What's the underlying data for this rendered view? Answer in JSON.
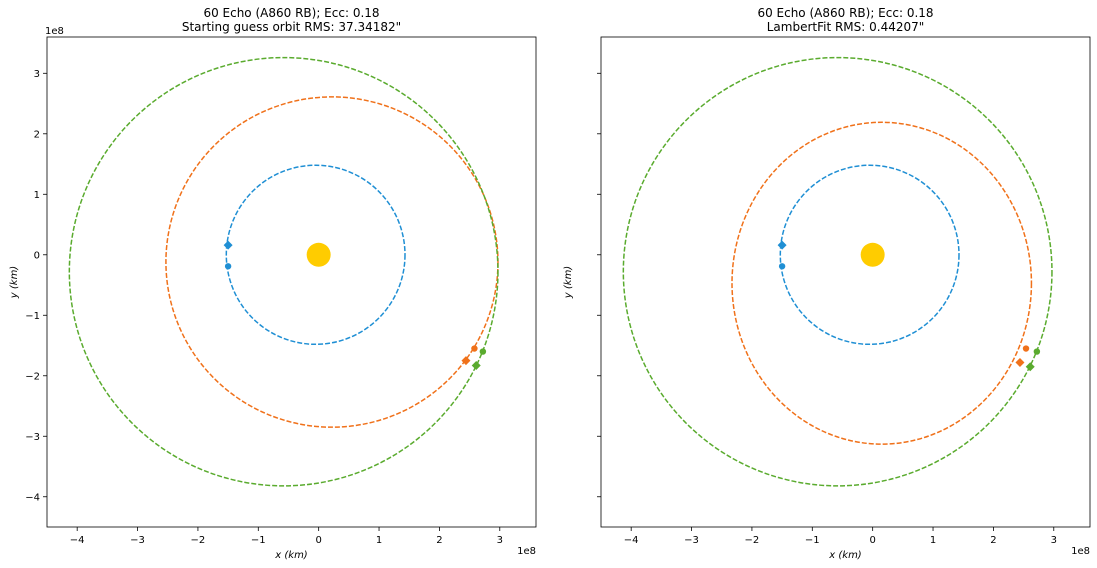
{
  "chart_data": [
    {
      "type": "scatter",
      "title": "60 Echo (A860 RB); Ecc: 0.18",
      "subtitle": "Starting guess orbit RMS: 37.34182\"",
      "xlabel": "x (km)",
      "ylabel": "y (km)",
      "x_offset_label": "1e8",
      "y_offset_label": "1e8",
      "xlim": [
        -4.5,
        3.6
      ],
      "ylim": [
        -4.5,
        3.6
      ],
      "x_ticks": [
        -4,
        -3,
        -2,
        -1,
        0,
        1,
        2,
        3
      ],
      "y_ticks": [
        -4,
        -3,
        -2,
        -1,
        0,
        1,
        2,
        3
      ],
      "x_tick_labels": [
        "−4",
        "−3",
        "−2",
        "−1",
        "0",
        "1",
        "2",
        "3"
      ],
      "y_tick_labels": [
        "−4",
        "−3",
        "−2",
        "−1",
        "0",
        "1",
        "2",
        "3"
      ],
      "show_y_tick_labels": true,
      "sun": {
        "x": 0,
        "y": 0,
        "color": "#FFCC00"
      },
      "orbits": [
        {
          "color": "#1f8fd4",
          "center": [
            -0.05,
            0.0
          ],
          "a": 1.48,
          "b": 1.48
        },
        {
          "color": "#f0711a",
          "center": [
            0.22,
            -0.12
          ],
          "a": 2.75,
          "b": 2.73
        },
        {
          "color": "#5aab2e",
          "center": [
            -0.58,
            -0.28
          ],
          "a": 3.55,
          "b": 3.54
        }
      ],
      "markers": [
        {
          "color": "#1f8fd4",
          "shape": "diamond",
          "x": -1.5,
          "y": 0.16
        },
        {
          "color": "#1f8fd4",
          "shape": "circle",
          "x": -1.5,
          "y": -0.19
        },
        {
          "color": "#f0711a",
          "shape": "diamond",
          "x": 2.44,
          "y": -1.75
        },
        {
          "color": "#f0711a",
          "shape": "circle",
          "x": 2.58,
          "y": -1.55
        },
        {
          "color": "#5aab2e",
          "shape": "diamond",
          "x": 2.61,
          "y": -1.83
        },
        {
          "color": "#5aab2e",
          "shape": "circle",
          "x": 2.72,
          "y": -1.6
        }
      ]
    },
    {
      "type": "scatter",
      "title": "60 Echo (A860 RB); Ecc: 0.18",
      "subtitle": "LambertFit RMS: 0.44207\"",
      "xlabel": "x (km)",
      "ylabel": "y (km)",
      "x_offset_label": "1e8",
      "y_offset_label": "",
      "xlim": [
        -4.5,
        3.6
      ],
      "ylim": [
        -4.5,
        3.6
      ],
      "x_ticks": [
        -4,
        -3,
        -2,
        -1,
        0,
        1,
        2,
        3
      ],
      "y_ticks": [
        -4,
        -3,
        -2,
        -1,
        0,
        1,
        2,
        3
      ],
      "x_tick_labels": [
        "−4",
        "−3",
        "−2",
        "−1",
        "0",
        "1",
        "2",
        "3"
      ],
      "y_tick_labels": [],
      "show_y_tick_labels": false,
      "sun": {
        "x": 0,
        "y": 0,
        "color": "#FFCC00"
      },
      "orbits": [
        {
          "color": "#1f8fd4",
          "center": [
            -0.05,
            0.0
          ],
          "a": 1.48,
          "b": 1.48
        },
        {
          "color": "#f0711a",
          "center": [
            0.15,
            -0.47
          ],
          "a": 2.48,
          "b": 2.66
        },
        {
          "color": "#5aab2e",
          "center": [
            -0.58,
            -0.28
          ],
          "a": 3.55,
          "b": 3.54
        }
      ],
      "markers": [
        {
          "color": "#1f8fd4",
          "shape": "diamond",
          "x": -1.5,
          "y": 0.16
        },
        {
          "color": "#1f8fd4",
          "shape": "circle",
          "x": -1.5,
          "y": -0.19
        },
        {
          "color": "#f0711a",
          "shape": "diamond",
          "x": 2.44,
          "y": -1.78
        },
        {
          "color": "#f0711a",
          "shape": "circle",
          "x": 2.54,
          "y": -1.55
        },
        {
          "color": "#5aab2e",
          "shape": "diamond",
          "x": 2.61,
          "y": -1.85
        },
        {
          "color": "#5aab2e",
          "shape": "circle",
          "x": 2.72,
          "y": -1.6
        }
      ]
    }
  ]
}
